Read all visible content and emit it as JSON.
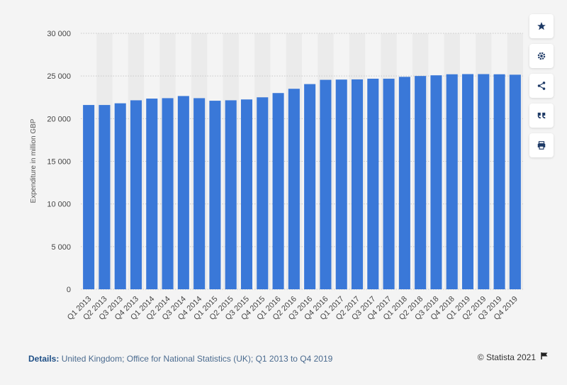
{
  "chart_data": {
    "type": "bar",
    "categories": [
      "Q1 2013",
      "Q2 2013",
      "Q3 2013",
      "Q4 2013",
      "Q1 2014",
      "Q2 2014",
      "Q3 2014",
      "Q4 2014",
      "Q1 2015",
      "Q2 2015",
      "Q3 2015",
      "Q4 2015",
      "Q1 2016",
      "Q2 2016",
      "Q3 2016",
      "Q4 2016",
      "Q1 2017",
      "Q2 2017",
      "Q3 2017",
      "Q4 2017",
      "Q1 2018",
      "Q2 2018",
      "Q3 2018",
      "Q4 2018",
      "Q1 2019",
      "Q2 2019",
      "Q3 2019",
      "Q4 2019"
    ],
    "values": [
      21600,
      21600,
      21800,
      22150,
      22350,
      22400,
      22650,
      22400,
      22100,
      22150,
      22250,
      22500,
      23000,
      23500,
      24050,
      24550,
      24580,
      24600,
      24680,
      24680,
      24900,
      25000,
      25080,
      25200,
      25220,
      25220,
      25200,
      25150
    ],
    "ylabel": "Expenditure in million GBP",
    "yticks": [
      "0",
      "5 000",
      "10 000",
      "15 000",
      "20 000",
      "25 000",
      "30 000"
    ],
    "ylim": [
      0,
      30000
    ],
    "grid": true,
    "bar_color": "#3a78d8"
  },
  "sidebar": {
    "buttons": [
      {
        "name": "star-icon"
      },
      {
        "name": "gear-icon"
      },
      {
        "name": "share-icon"
      },
      {
        "name": "quote-icon"
      },
      {
        "name": "print-icon"
      }
    ]
  },
  "footer": {
    "details_label": "Details:",
    "details_text": " United Kingdom; Office for National Statistics (UK); Q1 2013 to Q4 2019",
    "credit": "© Statista 2021"
  }
}
